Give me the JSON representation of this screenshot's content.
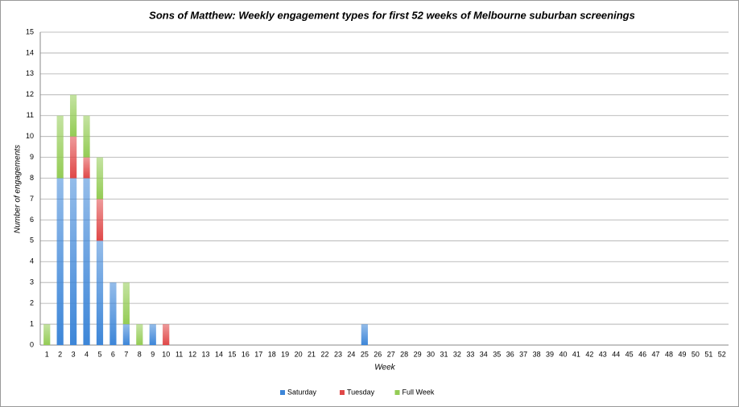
{
  "chart_data": {
    "type": "stacked-bar",
    "title": "Sons of Matthew: Weekly engagement types for first 52 weeks of Melbourne suburban screenings",
    "x_label": "Week",
    "y_label": "Number of engagements",
    "categories": [
      "1",
      "2",
      "3",
      "4",
      "5",
      "6",
      "7",
      "8",
      "9",
      "10",
      "11",
      "12",
      "13",
      "14",
      "15",
      "16",
      "17",
      "18",
      "19",
      "20",
      "21",
      "22",
      "23",
      "24",
      "25",
      "26",
      "27",
      "28",
      "29",
      "30",
      "31",
      "32",
      "33",
      "34",
      "35",
      "36",
      "37",
      "38",
      "39",
      "40",
      "41",
      "42",
      "43",
      "44",
      "45",
      "46",
      "47",
      "48",
      "49",
      "50",
      "51",
      "52"
    ],
    "series": [
      {
        "name": "Saturday",
        "color": "#3d86d8",
        "values": [
          0,
          8,
          8,
          8,
          5,
          3,
          1,
          0,
          1,
          0,
          0,
          0,
          0,
          0,
          0,
          0,
          0,
          0,
          0,
          0,
          0,
          0,
          0,
          0,
          1,
          0,
          0,
          0,
          0,
          0,
          0,
          0,
          0,
          0,
          0,
          0,
          0,
          0,
          0,
          0,
          0,
          0,
          0,
          0,
          0,
          0,
          0,
          0,
          0,
          0,
          0,
          0
        ]
      },
      {
        "name": "Tuesday",
        "color": "#e04848",
        "values": [
          0,
          0,
          2,
          1,
          2,
          0,
          0,
          0,
          0,
          1,
          0,
          0,
          0,
          0,
          0,
          0,
          0,
          0,
          0,
          0,
          0,
          0,
          0,
          0,
          0,
          0,
          0,
          0,
          0,
          0,
          0,
          0,
          0,
          0,
          0,
          0,
          0,
          0,
          0,
          0,
          0,
          0,
          0,
          0,
          0,
          0,
          0,
          0,
          0,
          0,
          0,
          0
        ]
      },
      {
        "name": "Full Week",
        "color": "#94cc55",
        "values": [
          1,
          3,
          2,
          2,
          2,
          0,
          2,
          1,
          0,
          0,
          0,
          0,
          0,
          0,
          0,
          0,
          0,
          0,
          0,
          0,
          0,
          0,
          0,
          0,
          0,
          0,
          0,
          0,
          0,
          0,
          0,
          0,
          0,
          0,
          0,
          0,
          0,
          0,
          0,
          0,
          0,
          0,
          0,
          0,
          0,
          0,
          0,
          0,
          0,
          0,
          0,
          0
        ]
      }
    ],
    "ylim": [
      0,
      15
    ],
    "yticks": [
      0,
      1,
      2,
      3,
      4,
      5,
      6,
      7,
      8,
      9,
      10,
      11,
      12,
      13,
      14,
      15
    ],
    "grid": true,
    "legend": "bottom"
  }
}
